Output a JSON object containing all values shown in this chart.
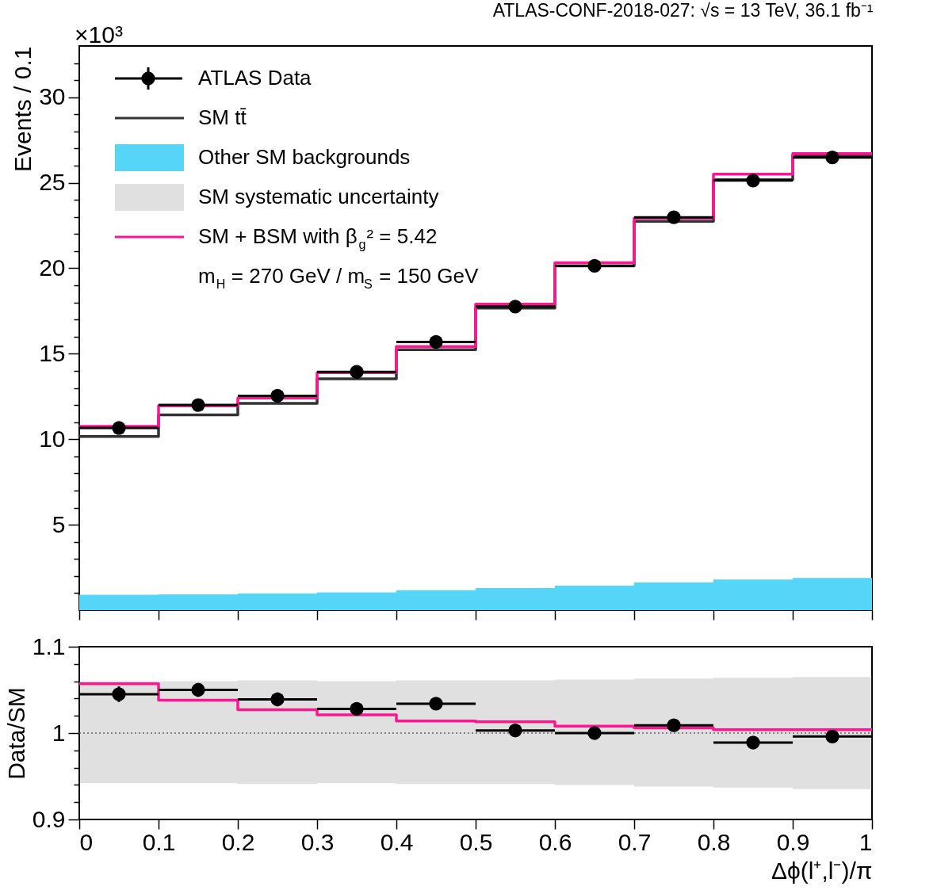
{
  "chart_data": [
    {
      "type": "histogram",
      "title": "ATLAS-CONF-2018-027: √s = 13 TeV, 36.1 fb⁻¹",
      "ylabel": "Events / 0.1",
      "annotations": [
        "×10³",
        "m$_{H}$ = 270 GeV / m$_{S}$ = 150 GeV"
      ],
      "bins": [
        0,
        0.1,
        0.2,
        0.3,
        0.4,
        0.5,
        0.6,
        0.7,
        0.8,
        0.9,
        1
      ],
      "xlim": [
        0,
        1
      ],
      "xticks": [
        0,
        0.1,
        0.2,
        0.3,
        0.4,
        0.5,
        0.6,
        0.7,
        0.8,
        0.9,
        1
      ],
      "ylim": [
        0,
        33
      ],
      "yticks": [
        {
          "value": 1,
          "label": null
        },
        {
          "value": 2,
          "label": null
        },
        {
          "value": 3,
          "label": null
        },
        {
          "value": 4,
          "label": null
        },
        5,
        {
          "value": 6,
          "label": null
        },
        {
          "value": 7,
          "label": null
        },
        {
          "value": 8,
          "label": null
        },
        {
          "value": 9,
          "label": null
        },
        10,
        {
          "value": 11,
          "label": null
        },
        {
          "value": 12,
          "label": null
        },
        {
          "value": 13,
          "label": null
        },
        {
          "value": 14,
          "label": null
        },
        15,
        {
          "value": 16,
          "label": null
        },
        {
          "value": 17,
          "label": null
        },
        {
          "value": 18,
          "label": null
        },
        {
          "value": 19,
          "label": null
        },
        20,
        {
          "value": 21,
          "label": null
        },
        {
          "value": 22,
          "label": null
        },
        {
          "value": 23,
          "label": null
        },
        {
          "value": 24,
          "label": null
        },
        25,
        {
          "value": 26,
          "label": null
        },
        {
          "value": 27,
          "label": null
        },
        {
          "value": 28,
          "label": null
        },
        {
          "value": 29,
          "label": null
        },
        30,
        {
          "value": 31,
          "label": null
        },
        {
          "value": 32,
          "label": null
        }
      ],
      "tick_labels": "y",
      "legend": "top left",
      "series": [
        {
          "name": "ATLAS Data",
          "type": "scatter",
          "color": "#000000",
          "x": [
            0.05,
            0.15,
            0.25,
            0.35,
            0.45,
            0.55,
            0.65,
            0.75,
            0.85,
            0.95
          ],
          "values": [
            10.66,
            12.0,
            12.54,
            13.94,
            15.69,
            17.76,
            20.14,
            22.98,
            25.13,
            26.48
          ],
          "xerrors": [
            0.05,
            0.05,
            0.05,
            0.05,
            0.05,
            0.05,
            0.05,
            0.05,
            0.05,
            0.05
          ]
        },
        {
          "name": "SM tt̄",
          "type": "line",
          "color": "#333333",
          "x": [
            0,
            0.1,
            0.1,
            0.2,
            0.2,
            0.3,
            0.3,
            0.4,
            0.4,
            0.5,
            0.5,
            0.6,
            0.6,
            0.7,
            0.7,
            0.8,
            0.8,
            0.9,
            0.9,
            1
          ],
          "values": [
            10.16,
            10.16,
            11.42,
            11.42,
            12.1,
            12.1,
            13.53,
            13.53,
            15.24,
            15.24,
            17.67,
            17.67,
            20.14,
            20.14,
            22.75,
            22.75,
            25.18,
            25.18,
            26.57,
            26.57
          ]
        },
        {
          "name": "Other SM backgrounds",
          "color": "#55d5f8",
          "values": [
            0.9,
            0.93,
            0.99,
            1.04,
            1.17,
            1.3,
            1.44,
            1.62,
            1.8,
            1.89
          ]
        },
        {
          "name": "SM + BSM with β$_{g}$² = 5.42",
          "type": "line",
          "color": "#ff1493",
          "x": [
            0,
            0.1,
            0.1,
            0.2,
            0.2,
            0.3,
            0.3,
            0.4,
            0.4,
            0.5,
            0.5,
            0.6,
            0.6,
            0.7,
            0.7,
            0.8,
            0.8,
            0.9,
            0.9,
            1
          ],
          "values": [
            10.75,
            10.75,
            11.96,
            11.96,
            12.41,
            12.41,
            13.89,
            13.89,
            15.42,
            15.42,
            17.9,
            17.9,
            20.32,
            20.32,
            22.93,
            22.93,
            25.5,
            25.5,
            26.71,
            26.71
          ]
        }
      ]
    },
    {
      "type": "line",
      "ylabel": "Data/SM",
      "xlabel": "Δϕ(l⁺,l⁻)/π",
      "xlim": [
        0,
        1
      ],
      "xticks": [
        0,
        0.1,
        0.2,
        0.3,
        0.4,
        0.5,
        0.6,
        0.7,
        0.8,
        0.9,
        1
      ],
      "ylim": [
        0.9,
        1.1
      ],
      "yticks": [
        0.9,
        {
          "value": 0.92,
          "label": null
        },
        {
          "value": 0.94,
          "label": null
        },
        {
          "value": 0.96,
          "label": null
        },
        {
          "value": 0.98,
          "label": null
        },
        1,
        {
          "value": 1.02,
          "label": null
        },
        {
          "value": 1.04,
          "label": null
        },
        {
          "value": 1.06,
          "label": null
        },
        {
          "value": 1.08,
          "label": null
        },
        1.1
      ],
      "series": [
        {
          "name": "SM systematic uncertainty",
          "color": "#666666",
          "line_style": "dotted",
          "x": [
            0,
            0.1,
            0.1,
            0.2,
            0.2,
            0.3,
            0.3,
            0.4,
            0.4,
            0.5,
            0.5,
            0.6,
            0.6,
            0.7,
            0.7,
            0.8,
            0.8,
            0.9,
            0.9,
            1
          ],
          "values": [
            1,
            1,
            1,
            1,
            1,
            1,
            1,
            1,
            1,
            1,
            1,
            1,
            1,
            1,
            1,
            1,
            1,
            1,
            1,
            1
          ],
          "lower": [
            0.942,
            0.942,
            0.942,
            0.942,
            0.941,
            0.941,
            0.942,
            0.942,
            0.941,
            0.941,
            0.941,
            0.941,
            0.94,
            0.94,
            0.938,
            0.938,
            0.937,
            0.937,
            0.935,
            0.935
          ],
          "upper": [
            1.06,
            1.06,
            1.06,
            1.06,
            1.061,
            1.061,
            1.06,
            1.06,
            1.061,
            1.061,
            1.061,
            1.061,
            1.062,
            1.062,
            1.063,
            1.063,
            1.064,
            1.064,
            1.065,
            1.065
          ]
        },
        {
          "color": "#ff1493",
          "x": [
            0,
            0.1,
            0.1,
            0.2,
            0.2,
            0.3,
            0.3,
            0.4,
            0.4,
            0.5,
            0.5,
            0.6,
            0.6,
            0.7,
            0.7,
            0.8,
            0.8,
            0.9,
            0.9,
            1
          ],
          "values": [
            1.057,
            1.057,
            1.038,
            1.038,
            1.027,
            1.027,
            1.021,
            1.021,
            1.014,
            1.014,
            1.013,
            1.013,
            1.008,
            1.008,
            1.006,
            1.006,
            1.004,
            1.004,
            1.004,
            1.004
          ]
        },
        {
          "type": "scatter",
          "color": "#000000",
          "x": [
            0.05,
            0.15,
            0.25,
            0.35,
            0.45,
            0.55,
            0.65,
            0.75,
            0.85,
            0.95
          ],
          "values": [
            1.045,
            1.05,
            1.039,
            1.028,
            1.034,
            1.003,
            1.0,
            1.009,
            0.989,
            0.996
          ],
          "xerrors": [
            0.05,
            0.05,
            0.05,
            0.05,
            0.05,
            0.05,
            0.05,
            0.05,
            0.05,
            0.05
          ],
          "errors": [
            0.009,
            0.008,
            0.008,
            0.007,
            0.007,
            0.006,
            0.006,
            0.006,
            0.006,
            0.006
          ]
        }
      ]
    }
  ]
}
